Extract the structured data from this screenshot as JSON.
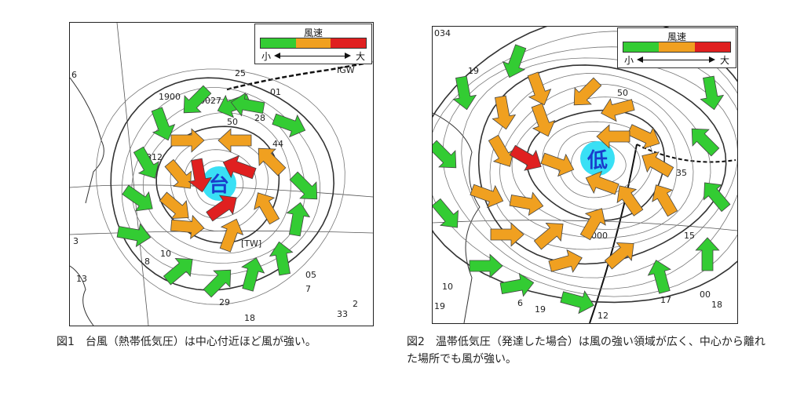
{
  "legend_title": "風速",
  "legend_small": "小",
  "legend_large": "大",
  "colors": {
    "weak": "#33cc33",
    "medium": "#f0a020",
    "strong": "#e02020",
    "center": "#39e0f5",
    "center_text": "#1a3ccc"
  },
  "figure1": {
    "center_label": "台",
    "caption": "図1　台風（熱帯低気圧）は中心付近ほど風が強い。",
    "map_labels": [
      "25",
      "01",
      "0027",
      "1900",
      "50",
      "28",
      "1812",
      "44",
      "10",
      "8",
      "05",
      "7",
      "29",
      "33",
      "18",
      "[TW]",
      "IGW",
      "6",
      "13",
      "3",
      "2"
    ]
  },
  "figure2": {
    "center_label": "低",
    "caption": "図2　温帯低気圧（発達した場合）は風の強い領域が広く、中心から離れた場所でも風が強い。",
    "map_labels": [
      "034",
      "19",
      "50",
      "35",
      "15",
      "1000",
      "6",
      "19",
      "17",
      "12",
      "10",
      "00",
      "06",
      "18",
      "19"
    ]
  }
}
